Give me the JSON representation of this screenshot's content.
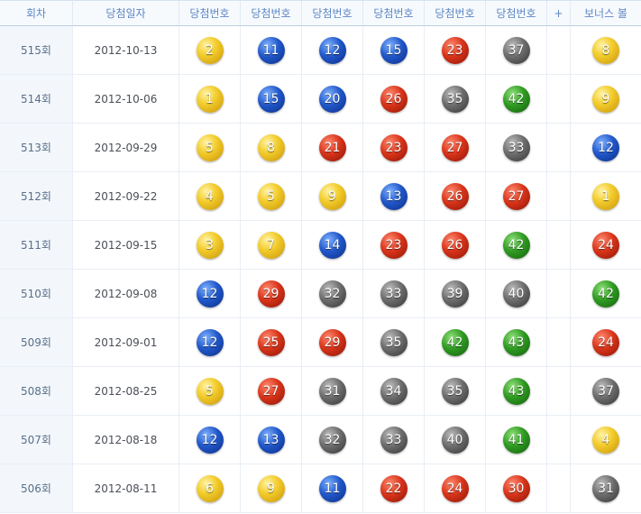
{
  "headers": {
    "round": "회차",
    "date": "당첨일자",
    "num": "당첨번호",
    "plus": "+",
    "bonus": "보너스 볼"
  },
  "colors": {
    "yellow": "#f3cd2d",
    "blue": "#2157c9",
    "red": "#d8341a",
    "gray": "#6d6d6d",
    "green": "#2f9a22",
    "header_text": "#5d86c6"
  },
  "rows": [
    {
      "round": "515회",
      "date": "2012-10-13",
      "numbers": [
        "2",
        "11",
        "12",
        "15",
        "23",
        "37"
      ],
      "bonus": "8"
    },
    {
      "round": "514회",
      "date": "2012-10-06",
      "numbers": [
        "1",
        "15",
        "20",
        "26",
        "35",
        "42"
      ],
      "bonus": "9"
    },
    {
      "round": "513회",
      "date": "2012-09-29",
      "numbers": [
        "5",
        "8",
        "21",
        "23",
        "27",
        "33"
      ],
      "bonus": "12"
    },
    {
      "round": "512회",
      "date": "2012-09-22",
      "numbers": [
        "4",
        "5",
        "9",
        "13",
        "26",
        "27"
      ],
      "bonus": "1"
    },
    {
      "round": "511회",
      "date": "2012-09-15",
      "numbers": [
        "3",
        "7",
        "14",
        "23",
        "26",
        "42"
      ],
      "bonus": "24"
    },
    {
      "round": "510회",
      "date": "2012-09-08",
      "numbers": [
        "12",
        "29",
        "32",
        "33",
        "39",
        "40"
      ],
      "bonus": "42"
    },
    {
      "round": "509회",
      "date": "2012-09-01",
      "numbers": [
        "12",
        "25",
        "29",
        "35",
        "42",
        "43"
      ],
      "bonus": "24"
    },
    {
      "round": "508회",
      "date": "2012-08-25",
      "numbers": [
        "5",
        "27",
        "31",
        "34",
        "35",
        "43"
      ],
      "bonus": "37"
    },
    {
      "round": "507회",
      "date": "2012-08-18",
      "numbers": [
        "12",
        "13",
        "32",
        "33",
        "40",
        "41"
      ],
      "bonus": "4"
    },
    {
      "round": "506회",
      "date": "2012-08-11",
      "numbers": [
        "6",
        "9",
        "11",
        "22",
        "24",
        "30"
      ],
      "bonus": "31"
    }
  ]
}
